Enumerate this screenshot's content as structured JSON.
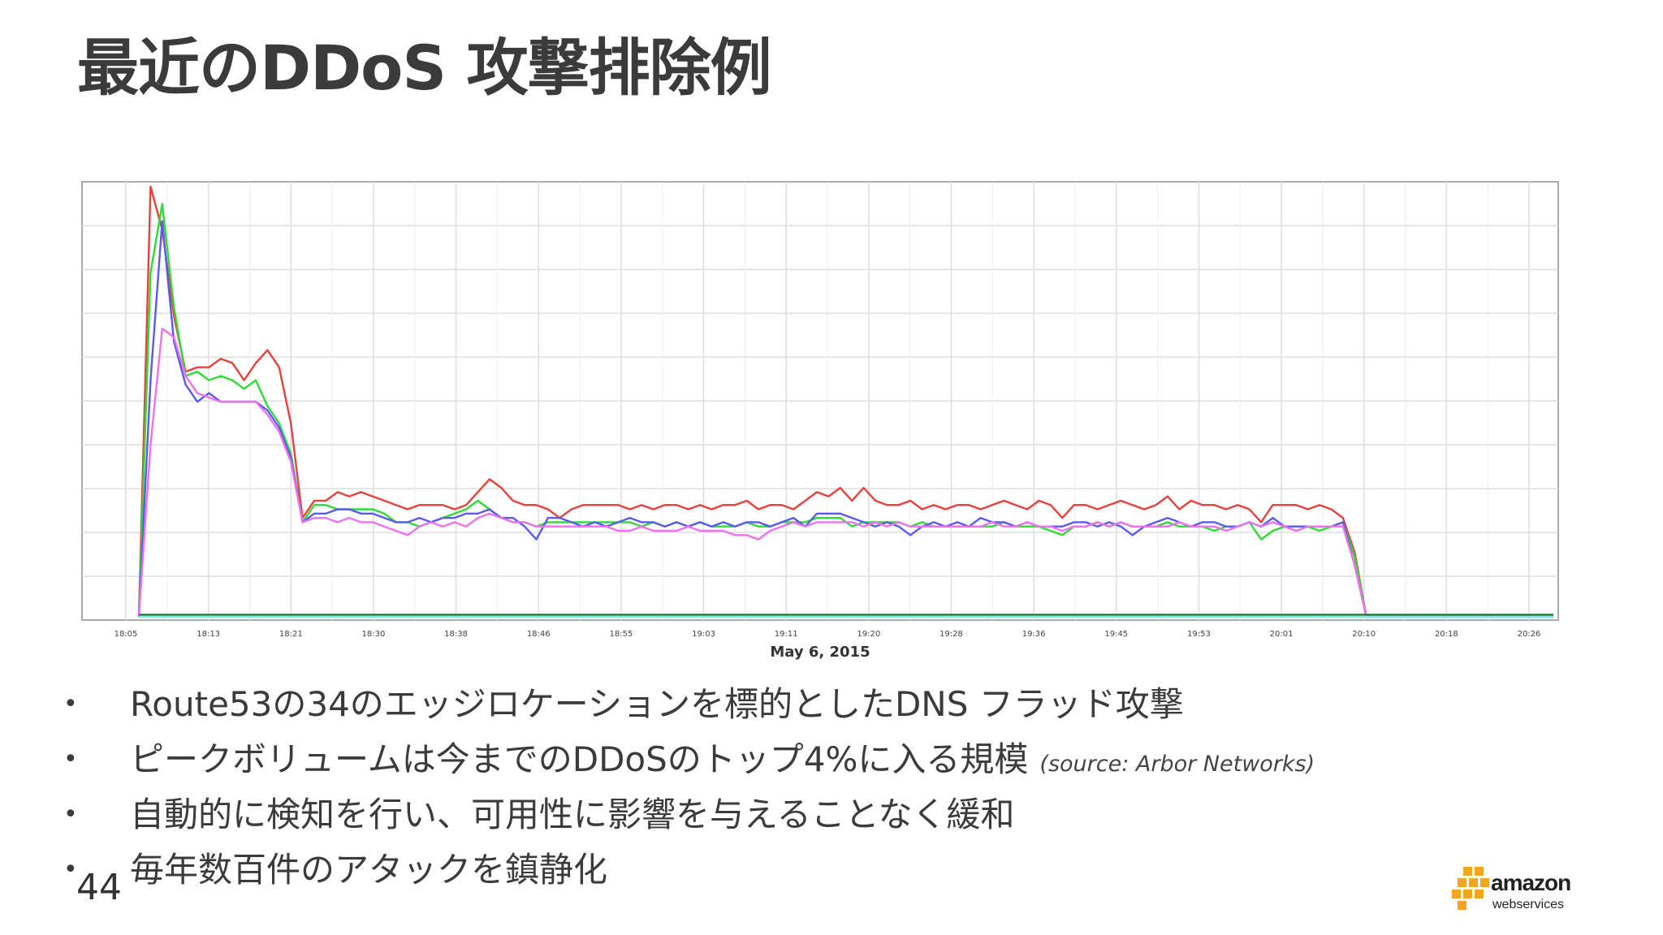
{
  "slide": {
    "title": "最近のDDoS 攻撃排除例",
    "page_number": "44"
  },
  "bullets": [
    {
      "text": "Route53の34のエッジロケーションを標的としたDNS フラッド攻撃",
      "source": ""
    },
    {
      "text": "ピークボリュームは今までのDDoSのトップ4%に入る規模",
      "source": "(source: Arbor Networks)"
    },
    {
      "text": "自動的に検知を行い、可用性に影響を与えることなく緩和",
      "source": ""
    },
    {
      "text": "毎年数百件のアタックを鎮静化",
      "source": ""
    }
  ],
  "bullet_symbol": "•",
  "logo": {
    "word": "amazon",
    "sub": "webservices"
  },
  "chart_data": {
    "type": "line",
    "title": "",
    "xlabel": "May 6, 2015",
    "ylabel": "",
    "x_ticks": [
      "18:05",
      "18:13",
      "18:21",
      "18:30",
      "18:38",
      "18:46",
      "18:55",
      "19:03",
      "19:11",
      "19:20",
      "19:28",
      "19:36",
      "19:45",
      "19:53",
      "20:01",
      "20:10",
      "20:18",
      "20:26"
    ],
    "y_ticks_visible": false,
    "ylim": [
      0,
      100
    ],
    "grid": true,
    "legend": "none",
    "series": [
      {
        "color": "#e8403c",
        "values": [
          0,
          100,
          90,
          70,
          57,
          58,
          58,
          60,
          59,
          55,
          59,
          62,
          58,
          45,
          23,
          27,
          27,
          29,
          28,
          29,
          28,
          27,
          26,
          25,
          26,
          26,
          26,
          25,
          26,
          29,
          32,
          30,
          27,
          26,
          26,
          25,
          23,
          25,
          26,
          26,
          26,
          26,
          25,
          26,
          25,
          26,
          26,
          25,
          26,
          25,
          26,
          26,
          27,
          25,
          26,
          26,
          25,
          27,
          29,
          28,
          30,
          27,
          30,
          27,
          26,
          26,
          27,
          25,
          26,
          25,
          26,
          26,
          25,
          26,
          27,
          26,
          25,
          27,
          26,
          23,
          26,
          26,
          25,
          26,
          27,
          26,
          25,
          26,
          28,
          25,
          27,
          26,
          26,
          25,
          26,
          25,
          22,
          26,
          26,
          26,
          25,
          26,
          25,
          23,
          15,
          0,
          0,
          0,
          0,
          0,
          0,
          0,
          0,
          0,
          0,
          0,
          0,
          0,
          0,
          0,
          0,
          0
        ]
      },
      {
        "color": "#2fdb35",
        "values": [
          0,
          80,
          96,
          72,
          56,
          57,
          55,
          56,
          55,
          53,
          55,
          49,
          45,
          38,
          22,
          26,
          26,
          25,
          25,
          25,
          25,
          24,
          22,
          22,
          21,
          22,
          23,
          24,
          25,
          27,
          25,
          23,
          22,
          22,
          21,
          22,
          22,
          22,
          22,
          22,
          22,
          22,
          22,
          21,
          22,
          21,
          22,
          21,
          22,
          21,
          21,
          21,
          22,
          21,
          21,
          22,
          22,
          22,
          23,
          23,
          23,
          21,
          22,
          22,
          22,
          22,
          21,
          22,
          21,
          21,
          21,
          21,
          21,
          21,
          22,
          21,
          21,
          21,
          20,
          19,
          21,
          21,
          22,
          21,
          22,
          21,
          21,
          21,
          22,
          21,
          21,
          21,
          20,
          21,
          21,
          22,
          18,
          20,
          21,
          20,
          21,
          20,
          21,
          22,
          14,
          0,
          0,
          0,
          0,
          0,
          0,
          0,
          0,
          0,
          0,
          0,
          0,
          0,
          0,
          0,
          0,
          0
        ]
      },
      {
        "color": "#5a5af0",
        "values": [
          0,
          55,
          92,
          64,
          54,
          50,
          52,
          50,
          50,
          50,
          50,
          48,
          44,
          37,
          22,
          24,
          24,
          25,
          25,
          24,
          24,
          23,
          22,
          22,
          23,
          22,
          23,
          23,
          24,
          24,
          25,
          23,
          23,
          21,
          18,
          23,
          23,
          22,
          21,
          22,
          21,
          22,
          23,
          22,
          22,
          21,
          22,
          21,
          22,
          21,
          22,
          21,
          22,
          22,
          21,
          22,
          23,
          21,
          24,
          24,
          24,
          23,
          22,
          21,
          22,
          21,
          19,
          21,
          22,
          21,
          22,
          21,
          23,
          22,
          22,
          21,
          22,
          21,
          21,
          21,
          22,
          22,
          21,
          22,
          21,
          19,
          21,
          22,
          23,
          22,
          21,
          22,
          22,
          21,
          21,
          22,
          21,
          23,
          21,
          21,
          21,
          21,
          21,
          22,
          12,
          0,
          0,
          0,
          0,
          0,
          0,
          0,
          0,
          0,
          0,
          0,
          0,
          0,
          0,
          0,
          0,
          0
        ]
      },
      {
        "color": "#f070f0",
        "values": [
          0,
          40,
          67,
          65,
          56,
          52,
          51,
          50,
          50,
          50,
          50,
          47,
          43,
          36,
          22,
          23,
          23,
          22,
          23,
          22,
          22,
          21,
          20,
          19,
          21,
          22,
          21,
          22,
          21,
          23,
          24,
          23,
          22,
          22,
          21,
          21,
          21,
          21,
          21,
          21,
          21,
          20,
          20,
          21,
          20,
          20,
          20,
          21,
          20,
          20,
          20,
          19,
          19,
          18,
          20,
          21,
          22,
          21,
          22,
          22,
          22,
          22,
          21,
          22,
          21,
          22,
          21,
          21,
          21,
          21,
          21,
          21,
          21,
          22,
          21,
          21,
          22,
          21,
          21,
          20,
          21,
          21,
          22,
          21,
          22,
          21,
          21,
          21,
          21,
          22,
          21,
          21,
          21,
          20,
          21,
          22,
          21,
          22,
          21,
          20,
          21,
          21,
          21,
          21,
          12,
          0,
          0,
          0,
          0,
          0,
          0,
          0,
          0,
          0,
          0,
          0,
          0,
          0,
          0,
          0,
          0,
          0
        ]
      },
      {
        "color": "#1c7a2a",
        "values": [
          0.5,
          0.5,
          0.5,
          0.5,
          0.5,
          0.5,
          0.5,
          0.5,
          0.5,
          0.5,
          0.5,
          0.5,
          0.5,
          0.5,
          0.5,
          0.5,
          0.5,
          0.5,
          0.5,
          0.5,
          0.5,
          0.5,
          0.5,
          0.5,
          0.5,
          0.5,
          0.5,
          0.5,
          0.5,
          0.5,
          0.5,
          0.5,
          0.5,
          0.5,
          0.5,
          0.5,
          0.5,
          0.5,
          0.5,
          0.5,
          0.5,
          0.5,
          0.5,
          0.5,
          0.5,
          0.5,
          0.5,
          0.5,
          0.5,
          0.5,
          0.5,
          0.5,
          0.5,
          0.5,
          0.5,
          0.5,
          0.5,
          0.5,
          0.5,
          0.5,
          0.5,
          0.5,
          0.5,
          0.5,
          0.5,
          0.5,
          0.5,
          0.5,
          0.5,
          0.5,
          0.5,
          0.5,
          0.5,
          0.5,
          0.5,
          0.5,
          0.5,
          0.5,
          0.5,
          0.5,
          0.5,
          0.5,
          0.5,
          0.5,
          0.5,
          0.5,
          0.5,
          0.5,
          0.5,
          0.5,
          0.5,
          0.5,
          0.5,
          0.5,
          0.5,
          0.5,
          0.5,
          0.5,
          0.5,
          0.5,
          0.5,
          0.5,
          0.5,
          0.5,
          0.5,
          0.5,
          0.5,
          0.5,
          0.5,
          0.5,
          0.5,
          0.5,
          0.5,
          0.5,
          0.5,
          0.5,
          0.5,
          0.5,
          0.5,
          0.5,
          0.5,
          0.5
        ]
      },
      {
        "color": "#7fe8f0",
        "values": [
          0,
          0,
          0,
          0,
          0,
          0,
          0,
          0,
          0,
          0,
          0,
          0,
          0,
          0,
          0,
          0,
          0,
          0,
          0,
          0,
          0,
          0,
          0,
          0,
          0,
          0,
          0,
          0,
          0,
          0,
          0,
          0,
          0,
          0,
          0,
          0,
          0,
          0,
          0,
          0,
          0,
          0,
          0,
          0,
          0,
          0,
          0,
          0,
          0,
          0,
          0,
          0,
          0,
          0,
          0,
          0,
          0,
          0,
          0,
          0,
          0,
          0,
          0,
          0,
          0,
          0,
          0,
          0,
          0,
          0,
          0,
          0,
          0,
          0,
          0,
          0,
          0,
          0,
          0,
          0,
          0,
          0,
          0,
          0,
          0,
          0,
          0,
          0,
          0,
          0,
          0,
          0,
          0,
          0,
          0,
          0,
          0,
          0,
          0,
          0,
          0,
          0,
          0,
          0,
          0,
          0,
          0,
          0,
          0,
          0,
          0,
          0,
          0,
          0,
          0,
          0,
          0,
          0,
          0,
          0,
          0,
          0
        ]
      }
    ]
  }
}
